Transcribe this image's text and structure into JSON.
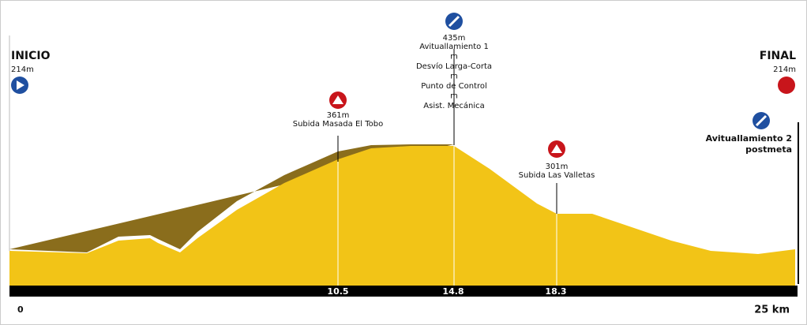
{
  "start": {
    "label": "INICIO",
    "altitude": "214m"
  },
  "finish": {
    "label": "FINAL",
    "altitude": "214m"
  },
  "waypoints": [
    {
      "altitude": "361m",
      "lines": [
        "Subida Masada El Tobo"
      ]
    },
    {
      "altitude": "435m",
      "lines": [
        "Avituallamiento 1",
        "m",
        "Desvío Larga-Corta",
        "m",
        "Punto de Control",
        "m",
        "Asist. Mecánica"
      ]
    },
    {
      "altitude": "301m",
      "lines": [
        "Subida Las Valletas"
      ]
    },
    {
      "lines": [
        "Avituallamiento 2",
        "postmeta"
      ]
    }
  ],
  "axis": {
    "start": "0",
    "marks": [
      "10.5",
      "14.8",
      "18.3"
    ],
    "end": "25 km"
  }
}
